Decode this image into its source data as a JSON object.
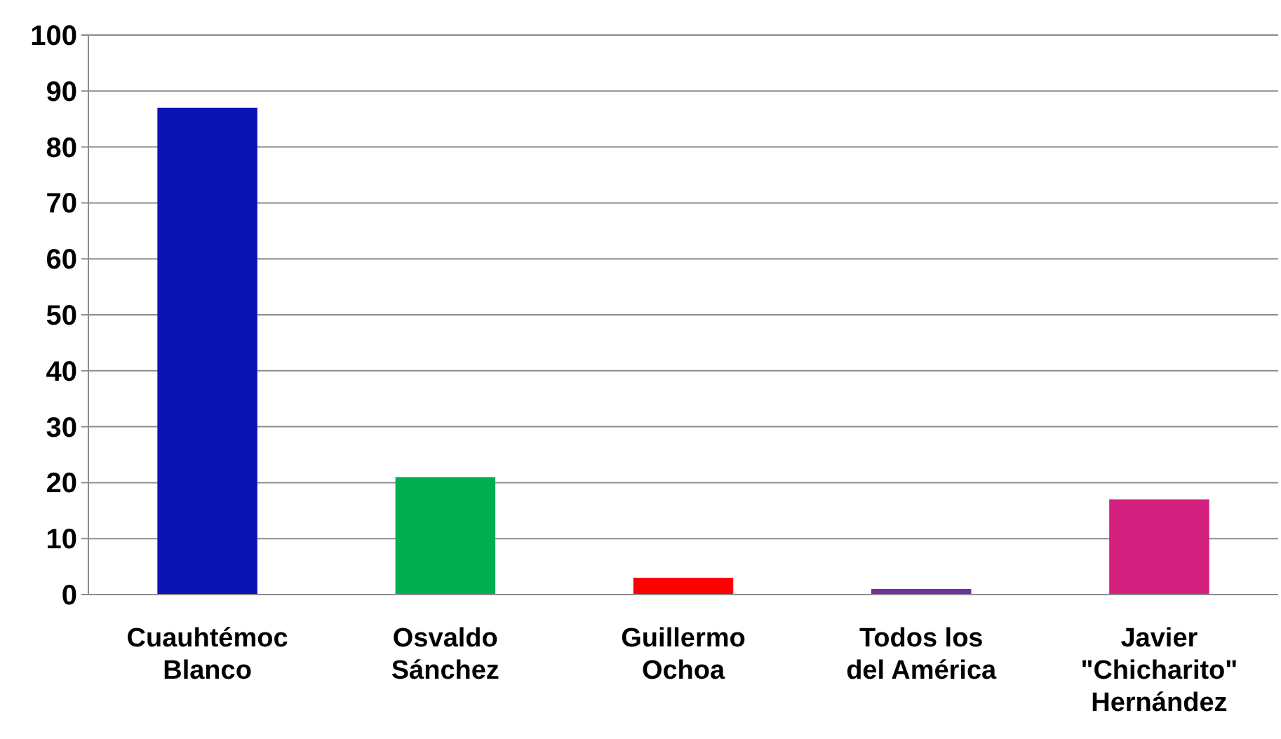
{
  "chart_data": {
    "type": "bar",
    "categories": [
      "Cuauhtémoc\nBlanco",
      "Osvaldo\nSánchez",
      "Guillermo\nOchoa",
      "Todos los\ndel América",
      "Javier\n\"Chicharito\"\nHernández"
    ],
    "values": [
      87,
      21,
      3,
      1,
      17
    ],
    "colors": [
      "#0a14b4",
      "#00b050",
      "#ff0000",
      "#7030a0",
      "#d4207e"
    ],
    "ylim": [
      0,
      100
    ],
    "yticks": [
      0,
      10,
      20,
      30,
      40,
      50,
      60,
      70,
      80,
      90,
      100
    ],
    "grid": "y"
  }
}
